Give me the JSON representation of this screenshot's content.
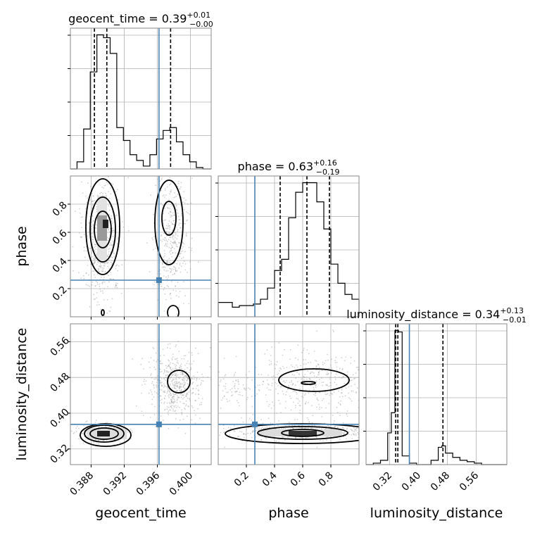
{
  "chart_data": {
    "type": "corner",
    "parameters": [
      "geocent_time",
      "phase",
      "luminosity_distance"
    ],
    "injection": {
      "geocent_time": 0.3962,
      "phase": 0.26,
      "luminosity_distance": 0.375
    },
    "panels": {
      "geocent_time": {
        "title_text": "geocent_time = 0.39",
        "title_plus": "+0.01",
        "title_minus": "−0.00",
        "xlim": [
          0.3855,
          0.4025
        ],
        "quantiles": [
          0.3884,
          0.3899,
          0.3976
        ],
        "hist_bins": [
          0.3855,
          0.3863,
          0.3871,
          0.3879,
          0.3887,
          0.3895,
          0.3903,
          0.3911,
          0.3919,
          0.3927,
          0.3935,
          0.3943,
          0.3951,
          0.3959,
          0.3967,
          0.3975,
          0.3983,
          0.3991,
          0.3999,
          0.4007,
          0.4015,
          0.4025
        ],
        "hist_counts": [
          0,
          0.05,
          0.28,
          0.68,
          0.94,
          0.92,
          0.81,
          0.29,
          0.2,
          0.1,
          0.06,
          0.02,
          0.1,
          0.21,
          0.27,
          0.29,
          0.19,
          0.1,
          0.05,
          0.01,
          0
        ]
      },
      "phase": {
        "title_text": "phase = 0.63",
        "title_plus": "+0.16",
        "title_minus": "−0.19",
        "xlim": [
          0.0,
          1.0
        ],
        "quantiles": [
          0.44,
          0.63,
          0.79
        ],
        "hist_bins": [
          0.0,
          0.05,
          0.1,
          0.15,
          0.2,
          0.25,
          0.3,
          0.35,
          0.4,
          0.45,
          0.5,
          0.55,
          0.6,
          0.65,
          0.7,
          0.75,
          0.8,
          0.85,
          0.9,
          0.95,
          1.0
        ],
        "hist_counts": [
          0.09,
          0.09,
          0.06,
          0.07,
          0.07,
          0.08,
          0.11,
          0.18,
          0.29,
          0.36,
          0.62,
          0.78,
          0.84,
          0.84,
          0.72,
          0.55,
          0.33,
          0.21,
          0.14,
          0.11
        ]
      },
      "luminosity_distance": {
        "title_text": "luminosity_distance = 0.34",
        "title_plus": "+0.13",
        "title_minus": "−0.01",
        "xlim": [
          0.255,
          0.645
        ],
        "quantiles": [
          0.337,
          0.343,
          0.468
        ],
        "hist_bins": [
          0.255,
          0.275,
          0.295,
          0.315,
          0.325,
          0.335,
          0.345,
          0.355,
          0.375,
          0.395,
          0.415,
          0.435,
          0.455,
          0.465,
          0.475,
          0.495,
          0.515,
          0.535,
          0.555,
          0.575,
          0.645
        ],
        "hist_counts": [
          0,
          0.01,
          0.03,
          0.22,
          0.36,
          0.93,
          0.92,
          0.06,
          0.01,
          0,
          0,
          0.03,
          0.12,
          0.13,
          0.08,
          0.05,
          0.03,
          0.02,
          0.01,
          0
        ]
      }
    },
    "twod_ylims": {
      "phase": [
        0.0,
        1.0
      ],
      "luminosity_distance": [
        0.285,
        0.6
      ]
    },
    "axis_labels": {
      "x": [
        "geocent_time",
        "phase",
        "luminosity_distance"
      ],
      "y": [
        "phase",
        "luminosity_distance"
      ]
    },
    "ticks": {
      "geocent_time": {
        "values": [
          0.388,
          0.392,
          0.396,
          0.4
        ],
        "labels": [
          "0.388",
          "0.392",
          "0.396",
          "0.400"
        ]
      },
      "phase": {
        "values": [
          0.2,
          0.4,
          0.6,
          0.8
        ],
        "labels": [
          "0.2",
          "0.4",
          "0.6",
          "0.8"
        ]
      },
      "luminosity_distance": {
        "values": [
          0.32,
          0.4,
          0.48,
          0.56
        ],
        "labels": [
          "0.32",
          "0.40",
          "0.48",
          "0.56"
        ]
      }
    },
    "contour_levels": [
      "0.39",
      "0.86"
    ],
    "colors": {
      "truth": "#4682b4",
      "hist": "#000000",
      "grid": "#b0b0b0",
      "scatter": "#9a9a9a"
    }
  }
}
